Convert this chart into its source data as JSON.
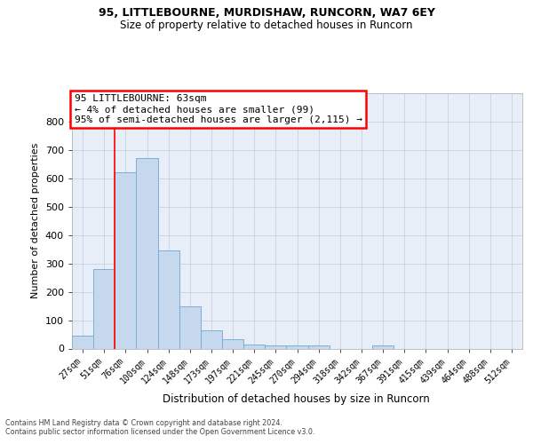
{
  "title1": "95, LITTLEBOURNE, MURDISHAW, RUNCORN, WA7 6EY",
  "title2": "Size of property relative to detached houses in Runcorn",
  "xlabel": "Distribution of detached houses by size in Runcorn",
  "ylabel": "Number of detached properties",
  "categories": [
    "27sqm",
    "51sqm",
    "76sqm",
    "100sqm",
    "124sqm",
    "148sqm",
    "173sqm",
    "197sqm",
    "221sqm",
    "245sqm",
    "270sqm",
    "294sqm",
    "318sqm",
    "342sqm",
    "367sqm",
    "391sqm",
    "415sqm",
    "439sqm",
    "464sqm",
    "488sqm",
    "512sqm"
  ],
  "values": [
    45,
    280,
    620,
    670,
    345,
    148,
    65,
    33,
    15,
    12,
    12,
    10,
    0,
    0,
    10,
    0,
    0,
    0,
    0,
    0,
    0
  ],
  "bar_color": "#c5d8ee",
  "bar_edge_color": "#7aafd4",
  "bg_color": "#e8eef8",
  "grid_color": "#c8d0e0",
  "red_line_x": 1.48,
  "annotation_line1": "95 LITTLEBOURNE: 63sqm",
  "annotation_line2": "← 4% of detached houses are smaller (99)",
  "annotation_line3": "95% of semi-detached houses are larger (2,115) →",
  "footnote1": "Contains HM Land Registry data © Crown copyright and database right 2024.",
  "footnote2": "Contains public sector information licensed under the Open Government Licence v3.0.",
  "ylim": [
    0,
    900
  ],
  "yticks": [
    0,
    100,
    200,
    300,
    400,
    500,
    600,
    700,
    800
  ]
}
